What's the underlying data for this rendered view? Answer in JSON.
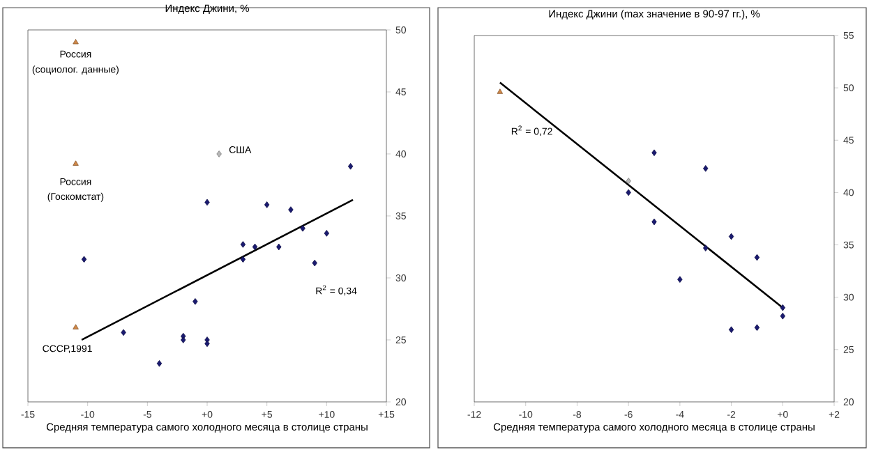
{
  "chart_data": [
    {
      "type": "scatter",
      "title": "Индекс Джини, %",
      "xlabel": "Средняя температура самого холодного месяца в столице страны",
      "xlim": [
        -15,
        15
      ],
      "xticks": [
        -15,
        -10,
        -5,
        {
          "value": 0,
          "label": "+0"
        },
        {
          "value": 5,
          "label": "+5"
        },
        {
          "value": 10,
          "label": "+10"
        },
        {
          "value": 15,
          "label": "+15"
        }
      ],
      "ylim": [
        20,
        50
      ],
      "yticks": [
        20,
        25,
        30,
        35,
        40,
        45,
        50
      ],
      "series": [
        {
          "marker": "triangle",
          "color": "#d08848",
          "x": [
            -11,
            -11,
            -11
          ],
          "values": [
            49,
            39.2,
            26
          ]
        },
        {
          "marker": "diamond",
          "color": "#1a1a70",
          "x": [
            -10.3,
            -7,
            -4,
            -2,
            -2,
            -1,
            0,
            0,
            0,
            3,
            3,
            4,
            5,
            6,
            7,
            8,
            9,
            10,
            12
          ],
          "values": [
            31.5,
            25.6,
            23.1,
            25.3,
            25.0,
            28.1,
            36.1,
            25.0,
            24.7,
            32.7,
            31.5,
            32.5,
            35.9,
            32.5,
            35.5,
            34.0,
            31.2,
            33.6,
            39.0
          ]
        },
        {
          "marker": "diamond",
          "color": "#b8b8b8",
          "x": [
            1
          ],
          "values": [
            40
          ]
        },
        {
          "type": "line",
          "marker": "none",
          "color": "#000000",
          "x": [
            -10.5,
            12.2
          ],
          "values": [
            25,
            36.3
          ]
        }
      ],
      "annotations": [
        "Россия",
        "(социолог. данные)",
        "Россия",
        "(Госкомстат)",
        "США",
        "СССР,1991",
        "R$^{2}$ = 0,34"
      ]
    },
    {
      "type": "scatter",
      "title": "Индекс Джини (max значение в 90-97 гг.), %",
      "xlabel": "Средняя температура самого холодного месяца в столице страны",
      "xlim": [
        -12,
        2
      ],
      "xticks": [
        -12,
        -10,
        -8,
        -6,
        -4,
        -2,
        {
          "value": 0,
          "label": "+0"
        },
        {
          "value": 2,
          "label": "+2"
        }
      ],
      "ylim": [
        20,
        55
      ],
      "yticks": [
        20,
        25,
        30,
        35,
        40,
        45,
        50,
        55
      ],
      "series": [
        {
          "marker": "triangle",
          "color": "#d08848",
          "x": [
            -11
          ],
          "values": [
            49.6
          ]
        },
        {
          "marker": "diamond",
          "color": "#1a1a70",
          "x": [
            -6,
            -5,
            -3,
            -5,
            -2,
            -3,
            -1,
            -4,
            0,
            0,
            -2,
            -1
          ],
          "values": [
            40.0,
            43.8,
            42.3,
            37.2,
            35.8,
            34.7,
            33.8,
            31.7,
            29.0,
            28.2,
            26.9,
            27.1
          ]
        },
        {
          "marker": "diamond",
          "color": "#b8b8b8",
          "x": [
            -6
          ],
          "values": [
            41.1
          ]
        },
        {
          "type": "line",
          "marker": "none",
          "color": "#000000",
          "x": [
            -11,
            0
          ],
          "values": [
            50.5,
            29
          ]
        }
      ],
      "annotations": [
        "R$^{2}$ = 0,72"
      ]
    }
  ]
}
